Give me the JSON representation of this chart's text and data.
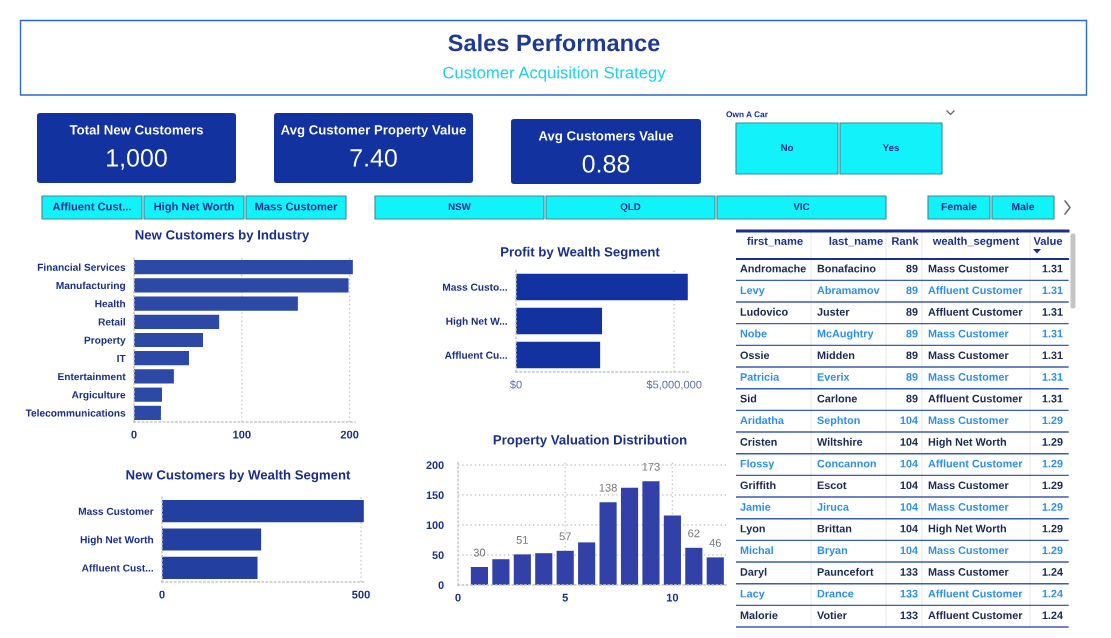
{
  "chart_data": [
    {
      "type": "other",
      "title": "Sales Performance",
      "subtitle": "Customer Acquisition Strategy"
    },
    {
      "type": "other",
      "title": "Total New Customers",
      "annotations": [
        "1,000"
      ],
      "color": "#1232a0"
    },
    {
      "type": "other",
      "title": "Avg Customer Property Value",
      "annotations": [
        "7.40"
      ],
      "color": "#1232a0"
    },
    {
      "type": "other",
      "title": "Avg Customers Value",
      "annotations": [
        "0.88"
      ],
      "color": "#1232a0"
    },
    {
      "type": "other",
      "title": "Own A Car",
      "categories": [
        "No",
        "Yes"
      ],
      "color": "#12f2fb"
    },
    {
      "type": "other",
      "categories": [
        "Affluent Cust...",
        "High Net Worth",
        "Mass Customer"
      ],
      "color": "#12f2fb"
    },
    {
      "type": "other",
      "categories": [
        "NSW",
        "QLD",
        "VIC"
      ],
      "color": "#12f2fb"
    },
    {
      "type": "other",
      "categories": [
        "Female",
        "Male"
      ],
      "color": "#12f2fb"
    },
    {
      "type": "bar",
      "orientation": "horizontal",
      "title": "New Customers by Industry",
      "categories": [
        "Financial Services",
        "Manufacturing",
        "Health",
        "Retail",
        "Property",
        "IT",
        "Entertainment",
        "Argiculture",
        "Telecommunications"
      ],
      "values": [
        203,
        199,
        152,
        79,
        64,
        51,
        37,
        26,
        25
      ],
      "color": "#2c49a6",
      "xlim": [
        0,
        205
      ],
      "xticks": [
        0,
        100,
        200
      ],
      "grid": "x"
    },
    {
      "type": "bar",
      "orientation": "horizontal",
      "title": "Profit by Wealth Segment",
      "categories": [
        "Mass Custo...",
        "High Net W...",
        "Affluent Cu..."
      ],
      "values": [
        5430000,
        2720000,
        2660000
      ],
      "color": "#12339f",
      "xlim": [
        0,
        5500000
      ],
      "xticks": [
        {
          "value": 0,
          "label": "$0"
        },
        {
          "value": 5000000,
          "label": "$5,000,000"
        }
      ],
      "grid": "x"
    },
    {
      "type": "bar",
      "orientation": "horizontal",
      "title": "New Customers by Wealth Segment",
      "categories": [
        "Mass Customer",
        "High Net Worth",
        "Affluent Cust..."
      ],
      "values": [
        507,
        249,
        240
      ],
      "color": "#2340a0",
      "xlim": [
        0,
        510
      ],
      "xticks": [
        0,
        500
      ],
      "grid": "x"
    },
    {
      "type": "bar",
      "title": "Property Valuation Distribution",
      "x": [
        1,
        2,
        3,
        4,
        5,
        6,
        7,
        8,
        9,
        10,
        11,
        12
      ],
      "values": [
        30,
        43,
        51,
        53,
        57,
        71,
        138,
        162,
        173,
        116,
        62,
        46
      ],
      "value_labels": [
        "30",
        null,
        "51",
        null,
        "57",
        null,
        "138",
        null,
        "173",
        null,
        "62",
        "46"
      ],
      "color": "#3241a8",
      "xlim": [
        0,
        12.5
      ],
      "ylim": [
        0,
        205
      ],
      "xticks": [
        0,
        5,
        10
      ],
      "yticks": [
        0,
        50,
        100,
        150,
        200
      ],
      "grid": true
    },
    {
      "type": "other",
      "categories": [
        "first_name",
        "last_name",
        "Rank",
        "wealth_segment",
        "Value"
      ],
      "cell_labels": [
        [
          "Andromache",
          "Bonafacino",
          "89",
          "Mass Customer",
          "1.31"
        ],
        [
          "Levy",
          "Abramamov",
          "89",
          "Affluent Customer",
          "1.31"
        ],
        [
          "Ludovico",
          "Juster",
          "89",
          "Affluent Customer",
          "1.31"
        ],
        [
          "Nobe",
          "McAughtry",
          "89",
          "Mass Customer",
          "1.31"
        ],
        [
          "Ossie",
          "Midden",
          "89",
          "Mass Customer",
          "1.31"
        ],
        [
          "Patricia",
          "Everix",
          "89",
          "Mass Customer",
          "1.31"
        ],
        [
          "Sid",
          "Carlone",
          "89",
          "Affluent Customer",
          "1.31"
        ],
        [
          "Aridatha",
          "Sephton",
          "104",
          "Mass Customer",
          "1.29"
        ],
        [
          "Cristen",
          "Wiltshire",
          "104",
          "High Net Worth",
          "1.29"
        ],
        [
          "Flossy",
          "Concannon",
          "104",
          "Affluent Customer",
          "1.29"
        ],
        [
          "Griffith",
          "Escot",
          "104",
          "Mass Customer",
          "1.29"
        ],
        [
          "Jamie",
          "Jiruca",
          "104",
          "Mass Customer",
          "1.29"
        ],
        [
          "Lyon",
          "Brittan",
          "104",
          "High Net Worth",
          "1.29"
        ],
        [
          "Michal",
          "Bryan",
          "104",
          "Mass Customer",
          "1.29"
        ],
        [
          "Daryl",
          "Pauncefort",
          "133",
          "Mass Customer",
          "1.24"
        ],
        [
          "Lacy",
          "Drance",
          "133",
          "Affluent Customer",
          "1.24"
        ],
        [
          "Malorie",
          "Votier",
          "133",
          "Affluent Customer",
          "1.24"
        ]
      ],
      "colors": [
        "#1c2a55",
        "#2a8ff0",
        "#1c2a55",
        "#2a8ff0",
        "#1c2a55",
        "#2a8ff0",
        "#1c2a55",
        "#2a8ff0",
        "#1c2a55",
        "#2a8ff0",
        "#1c2a55",
        "#2a8ff0",
        "#1c2a55",
        "#2a8ff0",
        "#1c2a55",
        "#2a8ff0",
        "#1c2a55"
      ]
    }
  ]
}
